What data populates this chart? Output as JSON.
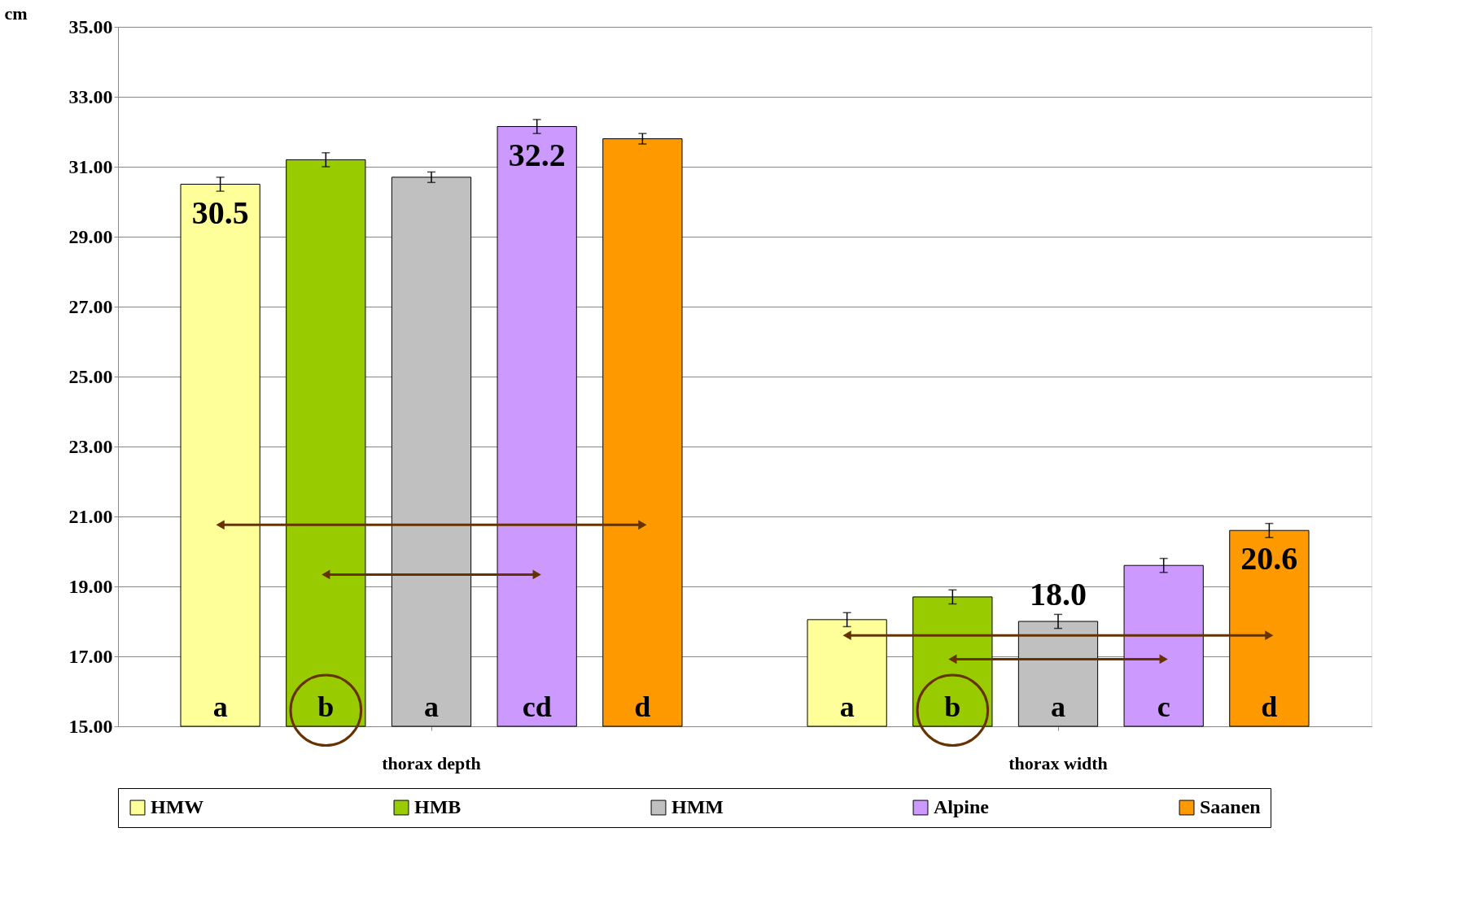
{
  "chart_data": {
    "type": "bar",
    "ylabel": "cm",
    "categories": [
      "thorax depth",
      "thorax width"
    ],
    "series": [
      {
        "name": "HMW",
        "color": "#ffff99",
        "values": [
          30.5,
          18.05
        ],
        "errors": [
          0.2,
          0.2
        ],
        "value_labels": [
          "30.5",
          null
        ]
      },
      {
        "name": "HMB",
        "color": "#99cc00",
        "values": [
          31.2,
          18.7
        ],
        "errors": [
          0.2,
          0.2
        ],
        "value_labels": [
          null,
          null
        ]
      },
      {
        "name": "HMM",
        "color": "#c0c0c0",
        "values": [
          30.7,
          18.0
        ],
        "errors": [
          0.15,
          0.2
        ],
        "value_labels": [
          null,
          "18.0"
        ]
      },
      {
        "name": "Alpine",
        "color": "#cc99ff",
        "values": [
          32.15,
          19.6
        ],
        "errors": [
          0.2,
          0.2
        ],
        "value_labels": [
          "32.2",
          null
        ]
      },
      {
        "name": "Saanen",
        "color": "#ff9900",
        "values": [
          31.8,
          20.6
        ],
        "errors": [
          0.15,
          0.2
        ],
        "value_labels": [
          null,
          "20.6"
        ]
      }
    ],
    "annotations": [
      "a",
      "b",
      "a",
      "cd",
      "d",
      "a",
      "b",
      "a",
      "c",
      "d"
    ],
    "ylim": [
      15,
      35
    ],
    "yticks": [
      {
        "value": 15,
        "label": "15.00"
      },
      {
        "value": 17,
        "label": "17.00"
      },
      {
        "value": 19,
        "label": "19.00"
      },
      {
        "value": 21,
        "label": "21.00"
      },
      {
        "value": 23,
        "label": "23.00"
      },
      {
        "value": 25,
        "label": "25.00"
      },
      {
        "value": 27,
        "label": "27.00"
      },
      {
        "value": 29,
        "label": "29.00"
      },
      {
        "value": 31,
        "label": "31.00"
      },
      {
        "value": 33,
        "label": "33.00"
      },
      {
        "value": 35,
        "label": "35.00"
      }
    ],
    "grid": "y",
    "legend": "bottom"
  }
}
